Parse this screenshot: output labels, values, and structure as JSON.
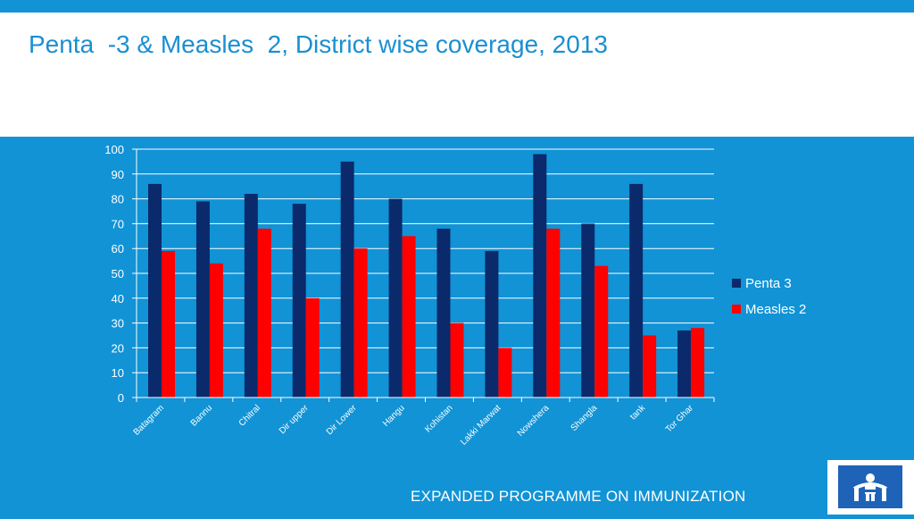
{
  "slide": {
    "title": "Penta  -3 & Measles  2, District wise coverage, 2013",
    "footer": "EXPANDED PROGRAMME ON IMMUNIZATION",
    "logo_icon": "epi-family-logo-icon"
  },
  "colors": {
    "background": "#1193d6",
    "title": "#1a8fd2",
    "penta": "#0a2a6b",
    "measles": "#ff0000",
    "logo_blue": "#1e63b8"
  },
  "chart_data": {
    "type": "bar",
    "categories": [
      "Batagram",
      "Bannu",
      "Chitral",
      "Dir upper",
      "Dir Lower",
      "Hangu",
      "Kohistan",
      "Lakki Marwat",
      "Nowshera",
      "Shangla",
      "tank",
      "Tor Ghar"
    ],
    "series": [
      {
        "name": "Penta 3",
        "values": [
          86,
          79,
          82,
          78,
          95,
          80,
          68,
          59,
          98,
          70,
          86,
          27
        ]
      },
      {
        "name": "Measles 2",
        "values": [
          59,
          54,
          68,
          40,
          60,
          65,
          30,
          20,
          68,
          53,
          25,
          28
        ]
      }
    ],
    "yticks": [
      "0",
      "10",
      "20",
      "30",
      "40",
      "50",
      "60",
      "70",
      "80",
      "90",
      "100"
    ],
    "ylim": [
      0,
      100
    ],
    "grid": true,
    "legend": "right",
    "title": "",
    "xlabel": "",
    "ylabel": ""
  }
}
